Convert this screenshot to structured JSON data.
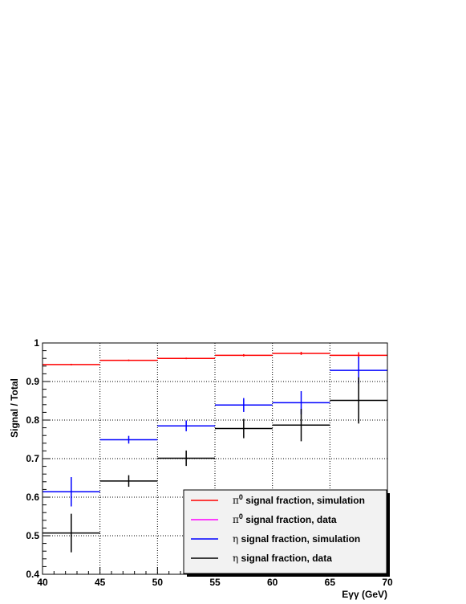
{
  "chart_data": {
    "type": "scatter",
    "xlabel": "Eγγ (GeV)",
    "ylabel": "Signal / Total",
    "xlim": [
      40,
      70
    ],
    "ylim": [
      0.4,
      1.0
    ],
    "grid": true,
    "legend_placement": "bottom-right",
    "x_ticks": [
      "40",
      "45",
      "50",
      "55",
      "60",
      "65",
      "70"
    ],
    "y_ticks": [
      "0.4",
      "0.5",
      "0.6",
      "0.7",
      "0.8",
      "0.9",
      "1"
    ],
    "bins": [
      [
        40,
        45
      ],
      [
        45,
        50
      ],
      [
        50,
        55
      ],
      [
        55,
        60
      ],
      [
        60,
        65
      ],
      [
        65,
        70
      ]
    ],
    "series": [
      {
        "legend_label": "signal fraction, simulation",
        "legend_symbol": "π",
        "legend_symbol_sup": "0",
        "color": "#ff0000",
        "values": [
          0.944,
          0.955,
          0.96,
          0.968,
          0.973,
          0.968
        ],
        "errors": [
          0.002,
          0.002,
          0.002,
          0.003,
          0.004,
          0.008
        ]
      },
      {
        "legend_label": "signal fraction, data",
        "legend_symbol": "π",
        "legend_symbol_sup": "0",
        "color": "#ff00ff",
        "values": [],
        "errors": []
      },
      {
        "legend_label": "signal fraction, simulation",
        "legend_symbol": "η",
        "legend_symbol_sup": "",
        "color": "#0000ff",
        "values": [
          0.614,
          0.749,
          0.785,
          0.839,
          0.845,
          0.929
        ],
        "errors": [
          0.038,
          0.01,
          0.014,
          0.018,
          0.03,
          0.035
        ]
      },
      {
        "legend_label": "signal fraction, data",
        "legend_symbol": "η",
        "legend_symbol_sup": "",
        "color": "#000000",
        "values": [
          0.507,
          0.642,
          0.701,
          0.778,
          0.787,
          0.851
        ],
        "errors": [
          0.05,
          0.015,
          0.02,
          0.025,
          0.042,
          0.06
        ]
      }
    ]
  }
}
